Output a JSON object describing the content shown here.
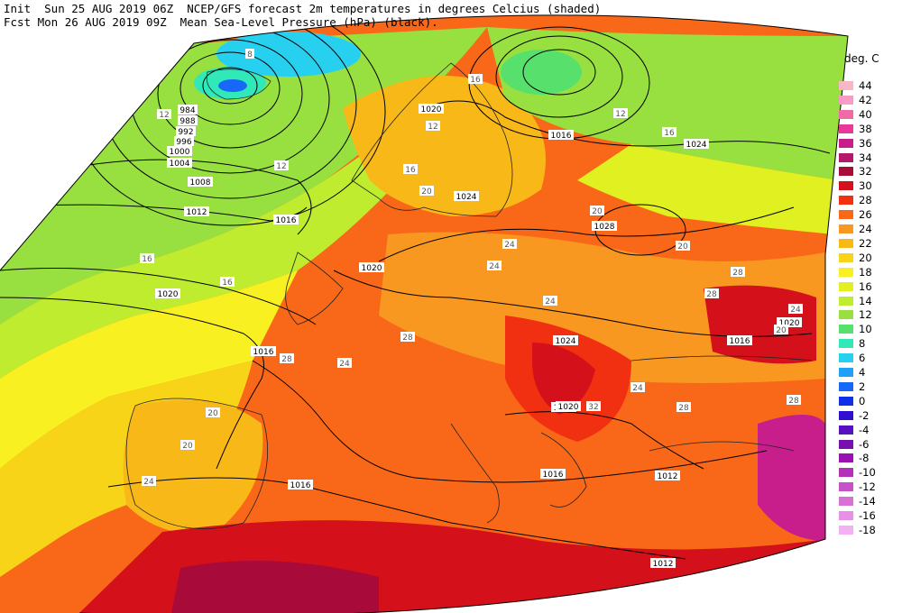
{
  "header": {
    "line1": "Init  Sun 25 AUG 2019 06Z  NCEP/GFS forecast 2m temperatures in degrees Celcius (shaded)",
    "line2": "Fcst Mon 26 AUG 2019 09Z  Mean Sea-Level Pressure (hPa) (black)."
  },
  "legend": {
    "title": "deg. C",
    "items": [
      {
        "label": "44",
        "color": "#f7b8c4"
      },
      {
        "label": "42",
        "color": "#f79cc4"
      },
      {
        "label": "40",
        "color": "#f06aa6"
      },
      {
        "label": "38",
        "color": "#e8389a"
      },
      {
        "label": "36",
        "color": "#c81e8c"
      },
      {
        "label": "34",
        "color": "#b4186a"
      },
      {
        "label": "32",
        "color": "#a80a3a"
      },
      {
        "label": "30",
        "color": "#d4101a"
      },
      {
        "label": "28",
        "color": "#f03010"
      },
      {
        "label": "26",
        "color": "#f86818"
      },
      {
        "label": "24",
        "color": "#f89820"
      },
      {
        "label": "22",
        "color": "#f8b818"
      },
      {
        "label": "20",
        "color": "#f8d418"
      },
      {
        "label": "18",
        "color": "#f8f020"
      },
      {
        "label": "16",
        "color": "#e0f020"
      },
      {
        "label": "14",
        "color": "#c0ec30"
      },
      {
        "label": "12",
        "color": "#98e040"
      },
      {
        "label": "10",
        "color": "#58e06c"
      },
      {
        "label": "8",
        "color": "#30e8b8"
      },
      {
        "label": "6",
        "color": "#28d0f0"
      },
      {
        "label": "4",
        "color": "#20a0f8"
      },
      {
        "label": "2",
        "color": "#1868f8"
      },
      {
        "label": "0",
        "color": "#1030e8"
      },
      {
        "label": "-2",
        "color": "#3010d0"
      },
      {
        "label": "-4",
        "color": "#5810c0"
      },
      {
        "label": "-6",
        "color": "#7810b0"
      },
      {
        "label": "-8",
        "color": "#9a10b0"
      },
      {
        "label": "-10",
        "color": "#b430b8"
      },
      {
        "label": "-12",
        "color": "#c850c8"
      },
      {
        "label": "-14",
        "color": "#d870d8"
      },
      {
        "label": "-16",
        "color": "#e890e8"
      },
      {
        "label": "-18",
        "color": "#f4b0f4"
      }
    ]
  },
  "pressure_labels": [
    {
      "text": "984"
    },
    {
      "text": "988"
    },
    {
      "text": "992"
    },
    {
      "text": "996"
    },
    {
      "text": "1000"
    },
    {
      "text": "1004"
    },
    {
      "text": "1008"
    },
    {
      "text": "1012"
    },
    {
      "text": "1016"
    },
    {
      "text": "1020"
    },
    {
      "text": "1020"
    },
    {
      "text": "1020"
    },
    {
      "text": "1016"
    },
    {
      "text": "1024"
    },
    {
      "text": "1016"
    },
    {
      "text": "1024"
    },
    {
      "text": "1028"
    },
    {
      "text": "1024"
    },
    {
      "text": "1020"
    },
    {
      "text": "1016"
    },
    {
      "text": "1016"
    },
    {
      "text": "1012"
    },
    {
      "text": "1012"
    },
    {
      "text": "1016"
    },
    {
      "text": "1016"
    },
    {
      "text": "1020"
    }
  ],
  "temperature_labels": [
    {
      "text": "8"
    },
    {
      "text": "12"
    },
    {
      "text": "12"
    },
    {
      "text": "16"
    },
    {
      "text": "16"
    },
    {
      "text": "20"
    },
    {
      "text": "20"
    },
    {
      "text": "24"
    },
    {
      "text": "24"
    },
    {
      "text": "28"
    },
    {
      "text": "24"
    },
    {
      "text": "20"
    },
    {
      "text": "20"
    },
    {
      "text": "24"
    },
    {
      "text": "28"
    },
    {
      "text": "28"
    },
    {
      "text": "24"
    },
    {
      "text": "32"
    },
    {
      "text": "28"
    },
    {
      "text": "24"
    },
    {
      "text": "16"
    },
    {
      "text": "12"
    },
    {
      "text": "16"
    },
    {
      "text": "12"
    },
    {
      "text": "16"
    },
    {
      "text": "20"
    },
    {
      "text": "28"
    },
    {
      "text": "24"
    },
    {
      "text": "28"
    },
    {
      "text": "20"
    }
  ]
}
